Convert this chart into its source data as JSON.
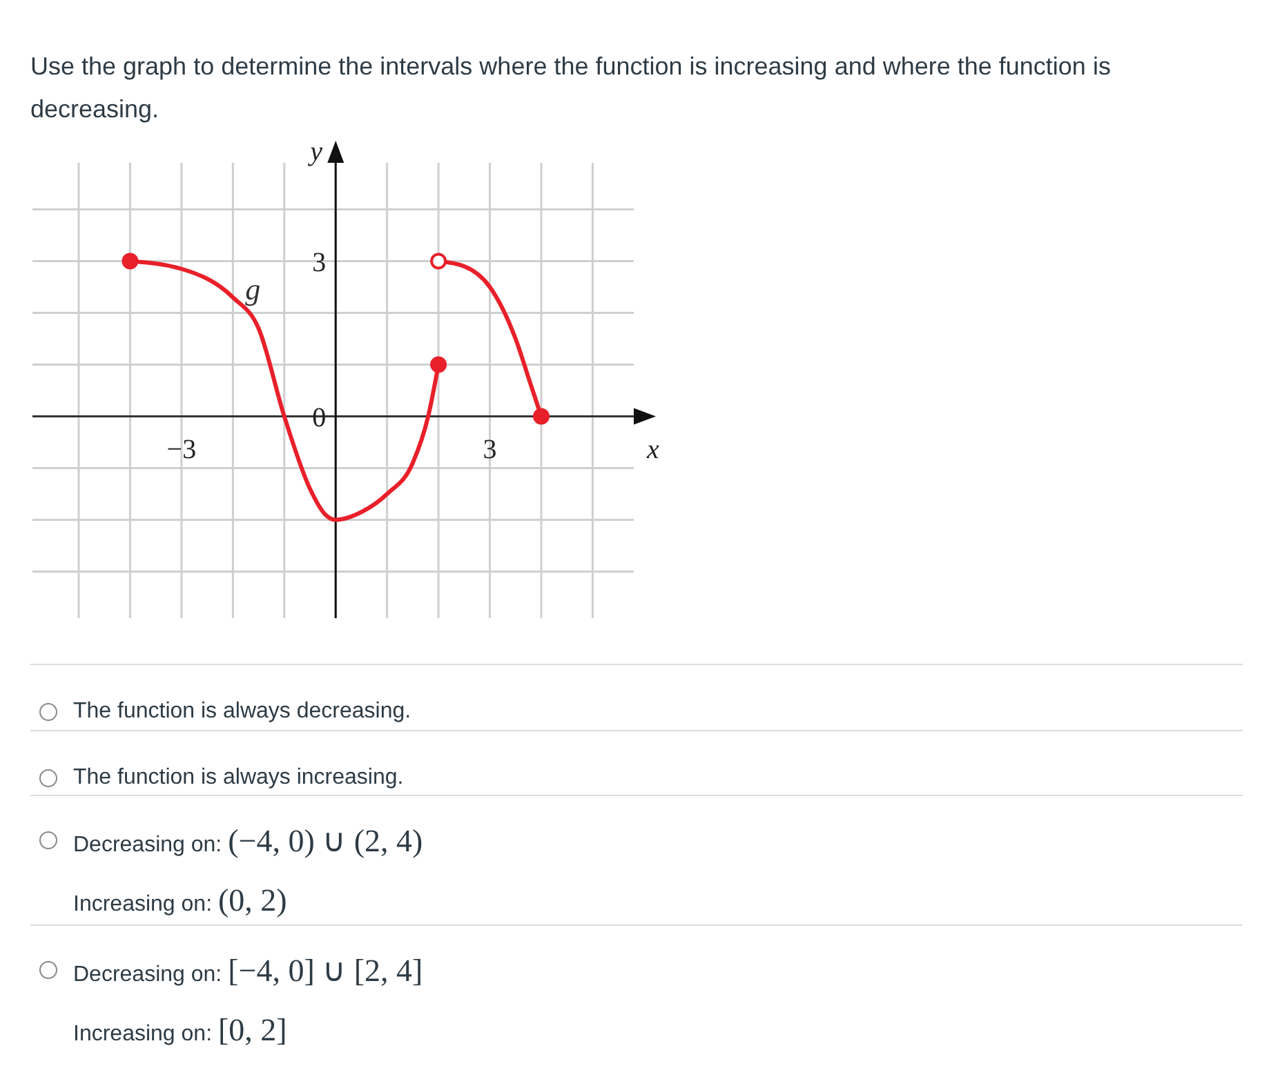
{
  "chart_data": {
    "type": "line",
    "xlabel": "x",
    "ylabel": "y",
    "xlim": [
      -5.9,
      5.8
    ],
    "ylim": [
      -3.9,
      4.9
    ],
    "xticks": [
      {
        "value": -5,
        "label": null
      },
      {
        "value": -4,
        "label": null
      },
      {
        "value": -3,
        "label": "−3"
      },
      {
        "value": -2,
        "label": null
      },
      {
        "value": -1,
        "label": null
      },
      {
        "value": 0,
        "label": null
      },
      {
        "value": 1,
        "label": null
      },
      {
        "value": 2,
        "label": null
      },
      3,
      {
        "value": 4,
        "label": null
      },
      {
        "value": 5,
        "label": null
      }
    ],
    "yticks": [
      {
        "value": -3,
        "label": null
      },
      {
        "value": -2,
        "label": null
      },
      {
        "value": -1,
        "label": null
      },
      0,
      {
        "value": 1,
        "label": null
      },
      {
        "value": 2,
        "label": null
      },
      3,
      {
        "value": 4,
        "label": null
      }
    ],
    "grid": true,
    "series": [
      {
        "color": "#e8202a",
        "x": [
          -4,
          -3,
          -2,
          -1.5,
          -1,
          -0.5,
          -0.2,
          0,
          0.5,
          1,
          1.5,
          1.8,
          2
        ],
        "values": [
          3,
          2.85,
          2.3,
          1.7,
          0,
          -1.4,
          -1.9,
          -2,
          -1.85,
          -1.5,
          -0.9,
          0,
          1
        ]
      },
      {
        "color": "#e8202a",
        "x": [
          2,
          2.5,
          3,
          3.5,
          3.8,
          4
        ],
        "values": [
          3,
          2.9,
          2.5,
          1.5,
          0.6,
          0
        ]
      },
      {
        "type": "scatter",
        "color": "#e8202a",
        "marker": "circle",
        "x": [
          -4,
          2,
          4
        ],
        "values": [
          3,
          1,
          0
        ]
      },
      {
        "type": "scatter",
        "color": "#e8202a",
        "marker": "circle",
        "x": [
          2
        ],
        "values": [
          3
        ]
      }
    ],
    "annotations": [
      "Use the graph to determine the intervals where the function is increasing and where the function is decreasing.",
      "g",
      "The function is always decreasing.",
      "The function is always increasing.",
      "Decreasing on: (−4, 0) ∪ (2, 4)",
      "Increasing on: (0, 2)",
      "Decreasing on: [−4, 0] ∪ [2, 4]",
      "Increasing on: [0, 2]"
    ]
  }
}
